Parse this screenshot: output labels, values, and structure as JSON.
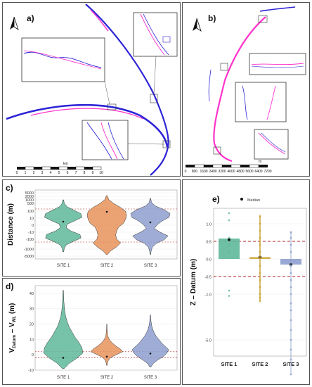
{
  "figure": {
    "panel_a": {
      "label": "a)",
      "scalebar_unit": "km",
      "scalebar_ticks": [
        "0",
        "1",
        "2",
        "3",
        "4",
        "5",
        "6",
        "7",
        "8",
        "9",
        "10"
      ]
    },
    "panel_b": {
      "label": "b)",
      "scalebar_unit": "m",
      "scalebar_ticks": [
        "0",
        "800",
        "1600",
        "2400",
        "3200",
        "4000",
        "4800",
        "5600",
        "6400",
        "7200"
      ]
    },
    "panel_c": {
      "label": "c)",
      "ylabel": "Distance (m)"
    },
    "panel_d": {
      "label": "d)",
      "ylabel": "V",
      "ylabel_sub1": "Datum",
      "ylabel_mid": " – V",
      "ylabel_sub2": "WL",
      "ylabel_unit": " (m)"
    },
    "panel_e": {
      "label": "e)",
      "ylabel": "Z – Datum (m)",
      "legend_label": "Median"
    }
  },
  "colors": {
    "site1": "#5fb89a",
    "site2": "#e8935c",
    "site3": "#8e9fcf",
    "site2_bar": "#c9a437",
    "threshold": "#b22222",
    "shoreline_a": "#2d24d6",
    "shoreline_b": "#ff33cc"
  },
  "chart_data": [
    {
      "panel": "c",
      "type": "violin",
      "categories": [
        "SITE 1",
        "SITE 2",
        "SITE 3"
      ],
      "ylabel": "Distance (m)",
      "yscale": "symlog",
      "y_ticks": [
        "5000",
        "2000",
        "1000",
        "500",
        "100",
        "10",
        "0",
        "-10",
        "-100",
        "-1000",
        "-5000"
      ],
      "thresholds": [
        50,
        -50
      ],
      "medians": [
        5,
        50,
        4
      ]
    },
    {
      "panel": "d",
      "type": "violin",
      "categories": [
        "SITE 1",
        "SITE 2",
        "SITE 3"
      ],
      "ylabel": "VDatum – VWL (m)",
      "ylim": [
        -10,
        45
      ],
      "y_ticks": [
        40,
        30,
        20,
        10,
        0,
        -10
      ],
      "thresholds": [
        0.5,
        -0.5
      ],
      "medians": [
        -0.5,
        -0.3,
        0.2
      ]
    },
    {
      "panel": "e",
      "type": "bar",
      "categories": [
        "SITE 1",
        "SITE 2",
        "SITE 3"
      ],
      "ylabel": "Z – Datum (m)",
      "y_ticks": [
        1.0,
        0.5,
        0.0,
        -0.5,
        -1.0,
        -5.0
      ],
      "values": [
        0.58,
        0.05,
        -0.16
      ],
      "medians": [
        0.55,
        0.05,
        -0.16
      ],
      "thresholds": [
        0.5,
        -0.5
      ],
      "legend": [
        "Median"
      ]
    }
  ]
}
